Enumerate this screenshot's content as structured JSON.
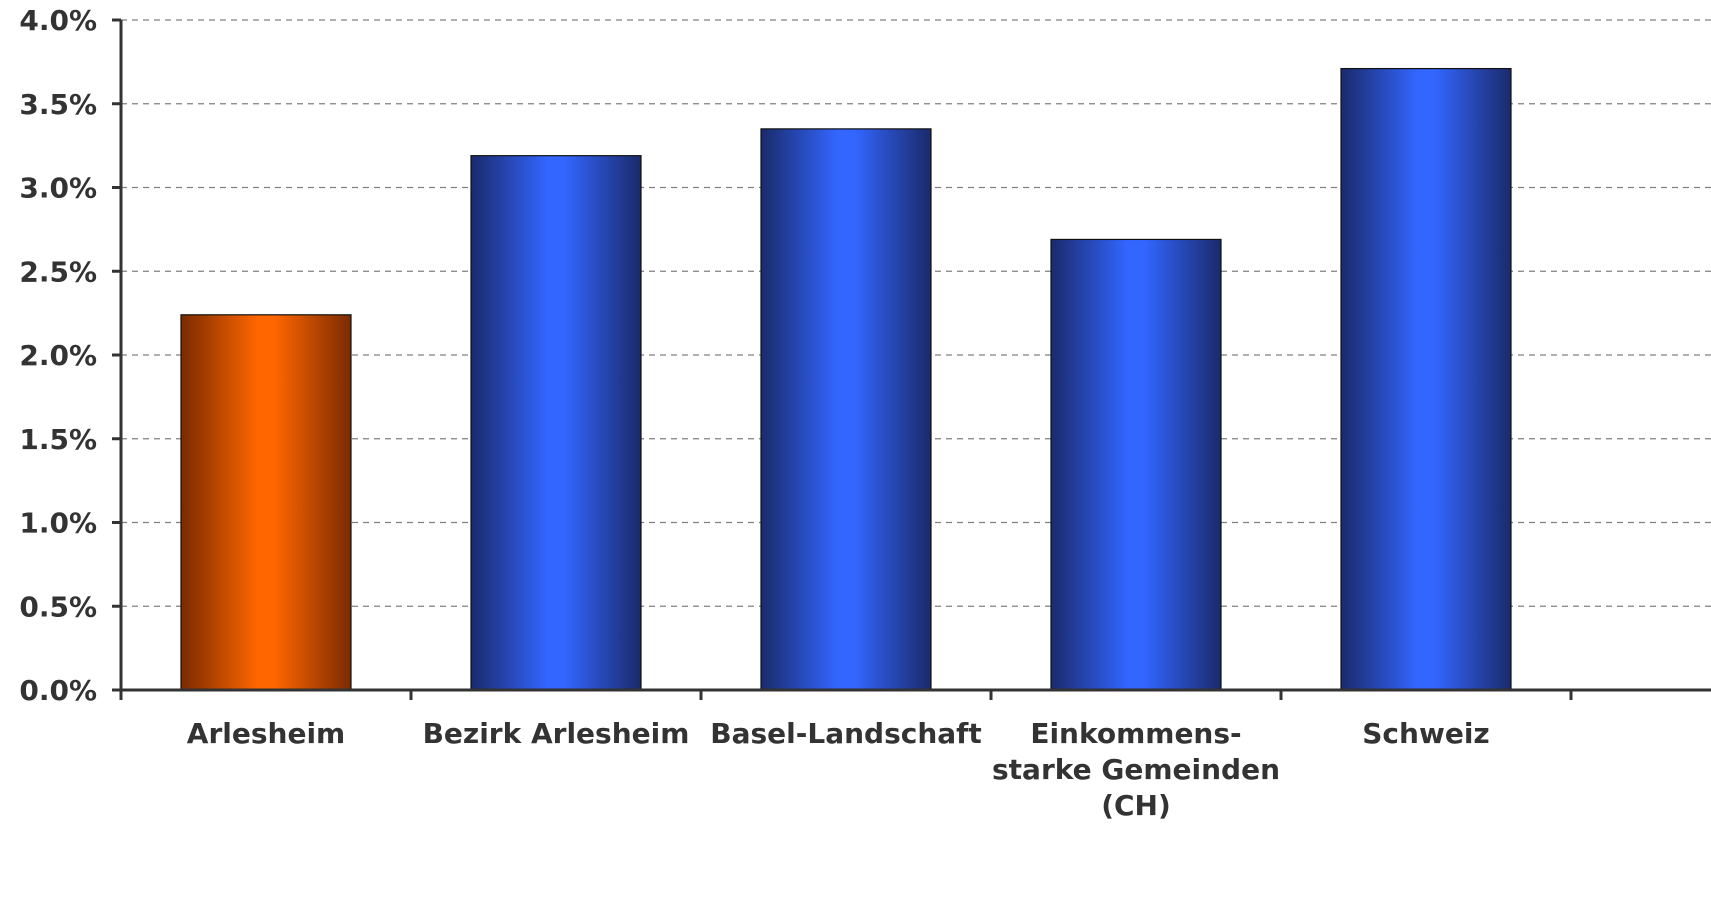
{
  "chart_data": {
    "type": "bar",
    "title": "",
    "xlabel": "",
    "ylabel": "",
    "categories": [
      [
        "Arlesheim"
      ],
      [
        "Bezirk Arlesheim"
      ],
      [
        "Basel-Landschaft"
      ],
      [
        "Einkommens-",
        "starke Gemeinden",
        "(CH)"
      ],
      [
        "Schweiz"
      ]
    ],
    "values": [
      2.24,
      3.19,
      3.35,
      2.69,
      3.71
    ],
    "value_format": "percent",
    "ylim": [
      0,
      4.0
    ],
    "yticks": [
      "0.0%",
      "0.5%",
      "1.0%",
      "1.5%",
      "2.0%",
      "2.5%",
      "3.0%",
      "3.5%",
      "4.0%"
    ],
    "grid": true,
    "grid_style": "dashed",
    "legend": "none",
    "bar_colors": [
      "#ff6600",
      "#3366ff",
      "#3366ff",
      "#3366ff",
      "#3366ff"
    ],
    "bar_edge_colors": [
      "#7a2a00",
      "#1a2a6b",
      "#1a2a6b",
      "#1a2a6b",
      "#1a2a6b"
    ],
    "axis_color": "#333333",
    "grid_color": "#808080"
  }
}
